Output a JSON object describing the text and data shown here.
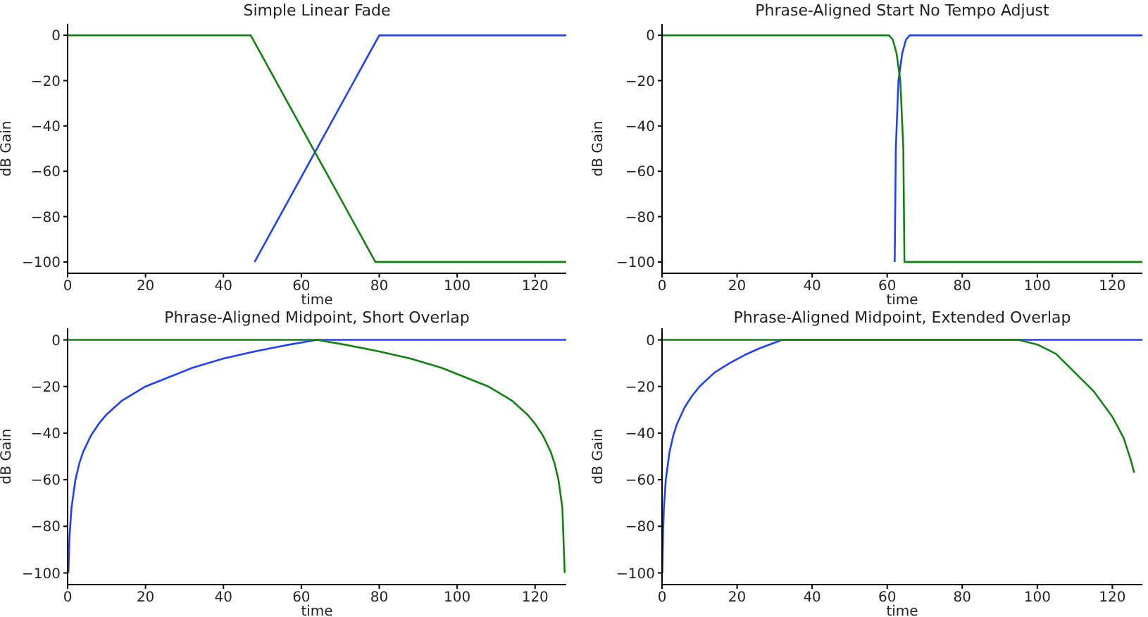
{
  "chart_data": [
    {
      "type": "line",
      "title": "Simple Linear Fade",
      "xlabel": "time",
      "ylabel": "dB Gain",
      "xlim": [
        0,
        128
      ],
      "xticks": [
        0,
        20,
        40,
        60,
        80,
        100,
        120
      ],
      "ylim": [
        -105,
        5
      ],
      "yticks": [
        0,
        -20,
        -40,
        -60,
        -80,
        -100
      ],
      "series": [
        {
          "color": "#2040ff",
          "x": [
            48,
            80,
            128
          ],
          "values": [
            -100,
            0,
            0
          ]
        },
        {
          "color": "#128212",
          "x": [
            0,
            47,
            79,
            128
          ],
          "values": [
            0,
            0,
            -100,
            -100
          ]
        }
      ]
    },
    {
      "type": "line",
      "title": "Phrase-Aligned Start No Tempo Adjust",
      "xlabel": "time",
      "ylabel": "dB Gain",
      "xlim": [
        0,
        128
      ],
      "xticks": [
        0,
        20,
        40,
        60,
        80,
        100,
        120
      ],
      "ylim": [
        -105,
        5
      ],
      "yticks": [
        0,
        -20,
        -40,
        -60,
        -80,
        -100
      ],
      "series": [
        {
          "color": "#2040ff",
          "x": [
            62,
            62.3,
            63,
            64,
            65,
            66,
            128
          ],
          "values": [
            -100,
            -50,
            -20,
            -8,
            -2,
            0,
            0
          ]
        },
        {
          "color": "#128212",
          "x": [
            0,
            60.5,
            61.5,
            62.5,
            63.5,
            64.3,
            64.6,
            65,
            128
          ],
          "values": [
            0,
            0,
            -2,
            -8,
            -20,
            -50,
            -100,
            -100,
            -100
          ]
        }
      ]
    },
    {
      "type": "line",
      "title": "Phrase-Aligned Midpoint, Short Overlap",
      "xlabel": "time",
      "ylabel": "dB Gain",
      "xlim": [
        0,
        128
      ],
      "xticks": [
        0,
        20,
        40,
        60,
        80,
        100,
        120
      ],
      "ylim": [
        -105,
        5
      ],
      "yticks": [
        0,
        -20,
        -40,
        -60,
        -80,
        -100
      ],
      "series": [
        {
          "color": "#2040ff",
          "x": [
            0.2,
            0.5,
            1,
            2,
            3,
            4,
            6,
            8,
            10,
            14,
            20,
            26,
            32,
            40,
            48,
            56,
            64,
            128
          ],
          "values": [
            -100,
            -84,
            -72,
            -60,
            -53,
            -48,
            -41,
            -36,
            -32,
            -26,
            -20,
            -16,
            -12,
            -8,
            -5,
            -2.3,
            0,
            0
          ]
        },
        {
          "color": "#128212",
          "x": [
            0,
            64,
            72,
            80,
            88,
            96,
            102,
            108,
            114,
            118,
            120,
            122,
            124,
            125,
            126,
            127,
            127.6
          ],
          "values": [
            0,
            0,
            -2.3,
            -5,
            -8,
            -12,
            -16,
            -20,
            -26,
            -32,
            -36,
            -41,
            -48,
            -53,
            -60,
            -72,
            -100
          ]
        }
      ]
    },
    {
      "type": "line",
      "title": "Phrase-Aligned Midpoint, Extended Overlap",
      "xlabel": "time",
      "ylabel": "dB Gain",
      "xlim": [
        0,
        128
      ],
      "xticks": [
        0,
        20,
        40,
        60,
        80,
        100,
        120
      ],
      "ylim": [
        -105,
        5
      ],
      "yticks": [
        0,
        -20,
        -40,
        -60,
        -80,
        -100
      ],
      "series": [
        {
          "color": "#2040ff",
          "x": [
            0.1,
            0.3,
            0.5,
            1,
            2,
            3,
            4,
            6,
            8,
            10,
            14,
            18,
            22,
            26,
            32,
            128
          ],
          "values": [
            -100,
            -81,
            -72,
            -60,
            -48,
            -41,
            -36,
            -29,
            -24,
            -20,
            -14,
            -10,
            -6.5,
            -3.6,
            0,
            0
          ]
        },
        {
          "color": "#128212",
          "x": [
            0,
            95,
            100,
            105,
            110,
            115,
            120,
            123,
            125,
            125.8
          ],
          "values": [
            0,
            0,
            -2,
            -6,
            -14,
            -22,
            -33,
            -42,
            -52,
            -57
          ]
        }
      ]
    }
  ]
}
